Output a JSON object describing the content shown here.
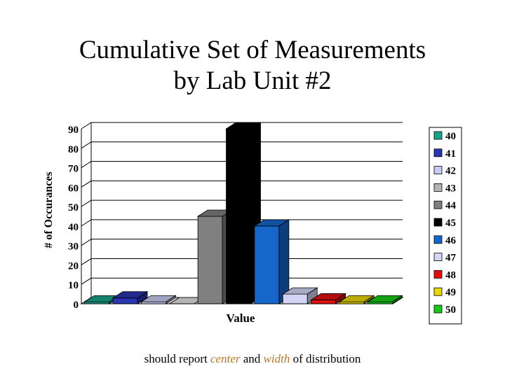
{
  "slide": {
    "title_line1": "Cumulative Set of Measurements",
    "title_line2": "by Lab Unit #2",
    "footer": {
      "prefix": "should report ",
      "word1": "center",
      "middle": " and ",
      "word2": "width",
      "suffix": " of distribution",
      "accent_color": "#b07a2a"
    }
  },
  "chart_data": {
    "type": "bar",
    "style": "3d",
    "title": "",
    "xlabel": "Value",
    "ylabel": "# of Occurances",
    "ylim": [
      0,
      90
    ],
    "yticks": [
      0,
      10,
      20,
      30,
      40,
      50,
      60,
      70,
      80,
      90
    ],
    "grid": true,
    "legend_position": "right",
    "series": [
      {
        "name": "40",
        "value": 1,
        "color": "#1aa38a"
      },
      {
        "name": "41",
        "value": 3,
        "color": "#2a35b0"
      },
      {
        "name": "42",
        "value": 1,
        "color": "#c8ccf2"
      },
      {
        "name": "43",
        "value": 0,
        "color": "#b4b4b4"
      },
      {
        "name": "44",
        "value": 45,
        "color": "#808080"
      },
      {
        "name": "45",
        "value": 90,
        "color": "#000000"
      },
      {
        "name": "46",
        "value": 40,
        "color": "#1666cc"
      },
      {
        "name": "47",
        "value": 5,
        "color": "#d2d4f6"
      },
      {
        "name": "48",
        "value": 2,
        "color": "#e01010"
      },
      {
        "name": "49",
        "value": 1,
        "color": "#e8d800"
      },
      {
        "name": "50",
        "value": 1,
        "color": "#18c818"
      }
    ]
  }
}
